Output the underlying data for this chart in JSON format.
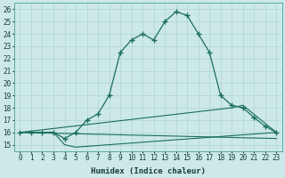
{
  "xlabel": "Humidex (Indice chaleur)",
  "bg_color": "#cce8e8",
  "grid_color": "#b0d4d4",
  "line_color": "#1a6e5e",
  "xlim": [
    -0.5,
    23.5
  ],
  "ylim": [
    14.5,
    26.5
  ],
  "xticks": [
    0,
    1,
    2,
    3,
    4,
    5,
    6,
    7,
    8,
    9,
    10,
    11,
    12,
    13,
    14,
    15,
    16,
    17,
    18,
    19,
    20,
    21,
    22,
    23
  ],
  "yticks": [
    15,
    16,
    17,
    18,
    19,
    20,
    21,
    22,
    23,
    24,
    25,
    26
  ],
  "series": [
    {
      "x": [
        0,
        1,
        2,
        3,
        4,
        5,
        6,
        7,
        8,
        9,
        10,
        11,
        12,
        13,
        14,
        15,
        16,
        17,
        18,
        19,
        20,
        21,
        22,
        23
      ],
      "y": [
        16.0,
        16.0,
        16.0,
        16.0,
        15.5,
        16.0,
        17.0,
        17.5,
        19.0,
        22.5,
        23.5,
        24.0,
        23.5,
        25.0,
        25.8,
        25.5,
        24.0,
        22.5,
        19.0,
        18.2,
        18.0,
        17.2,
        16.5,
        16.0
      ],
      "marker": "+"
    },
    {
      "x": [
        0,
        3,
        4,
        5,
        23
      ],
      "y": [
        16.0,
        16.0,
        15.0,
        14.8,
        16.0
      ],
      "marker": null
    },
    {
      "x": [
        0,
        23
      ],
      "y": [
        16.0,
        15.5
      ],
      "marker": null
    },
    {
      "x": [
        0,
        19,
        20,
        23
      ],
      "y": [
        16.0,
        18.0,
        18.2,
        16.0
      ],
      "marker": null
    }
  ]
}
